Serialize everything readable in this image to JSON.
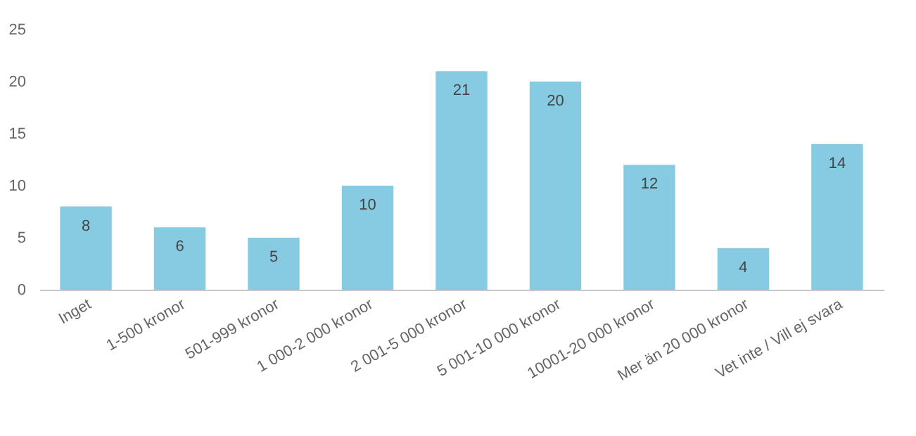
{
  "chart_data": {
    "type": "bar",
    "categories": [
      "Inget",
      "1-500 kronor",
      "501-999 kronor",
      "1 000-2 000 kronor",
      "2 001-5 000 kronor",
      "5 001-10 000 kronor",
      "10001-20 000 kronor",
      "Mer än 20 000 kronor",
      "Vet inte / Vill ej svara"
    ],
    "values": [
      8,
      6,
      5,
      10,
      21,
      20,
      12,
      4,
      14
    ],
    "color": "#87cbe2",
    "ylim": [
      0,
      25
    ],
    "yticks": [
      0,
      5,
      10,
      15,
      20,
      25
    ],
    "grid": false,
    "data_labels": true
  }
}
